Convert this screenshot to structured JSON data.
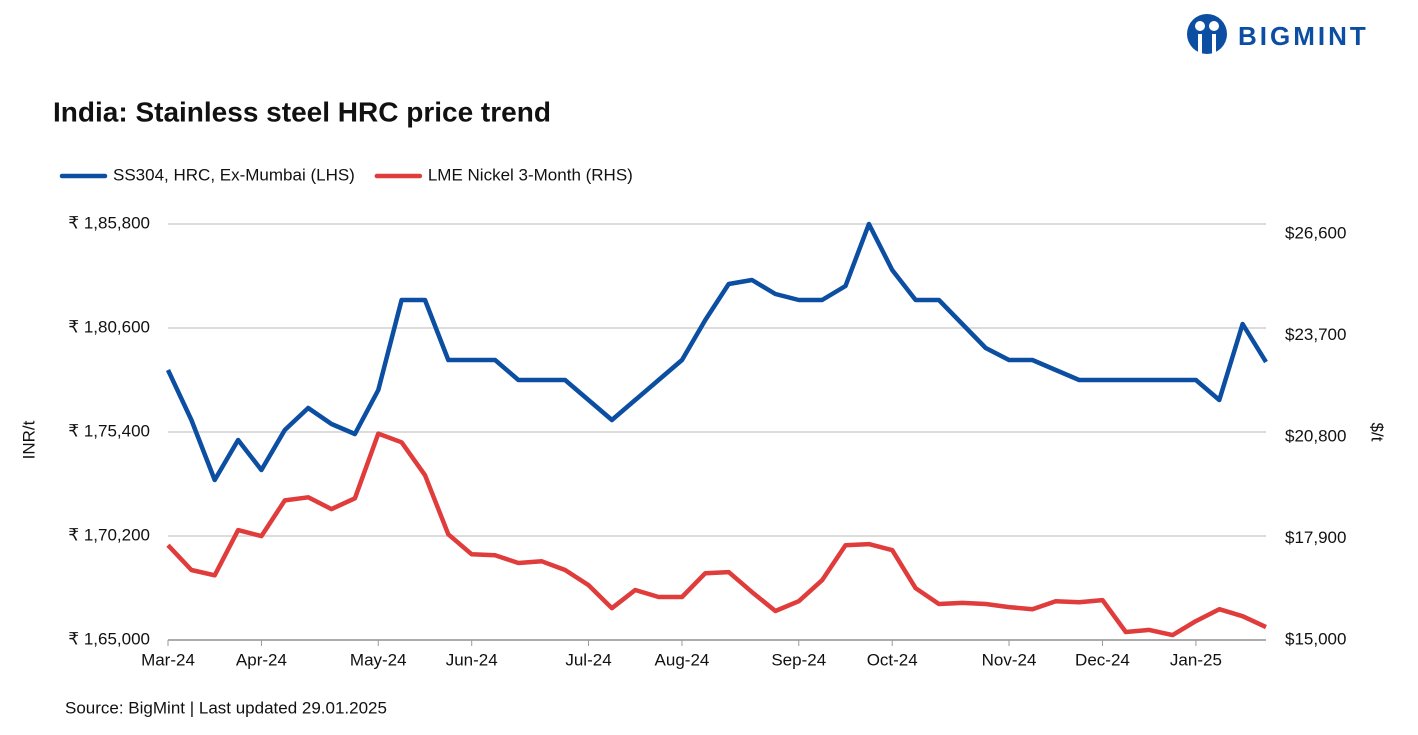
{
  "logo": "BIGMINT",
  "chart_data": {
    "type": "line",
    "title": "India: Stainless steel HRC price trend",
    "source": "Source: BigMint | Last updated 29.01.2025",
    "y_label": "INR/t",
    "y2_label": "$/t",
    "categories": [
      "Mar-24",
      null,
      null,
      null,
      "Apr-24",
      null,
      null,
      null,
      null,
      "May-24",
      null,
      null,
      null,
      "Jun-24",
      null,
      null,
      null,
      null,
      "Jul-24",
      null,
      null,
      null,
      "Aug-24",
      null,
      null,
      null,
      null,
      "Sep-24",
      null,
      null,
      null,
      "Oct-24",
      null,
      null,
      null,
      null,
      "Nov-24",
      null,
      null,
      null,
      "Dec-24",
      null,
      null,
      null,
      "Jan-25",
      null,
      null,
      null
    ],
    "series": [
      {
        "name": "SS304, HRC, Ex-Mumbai (LHS)",
        "color": "#0b4ea2",
        "axis": "y",
        "values": [
          178500,
          176000,
          173000,
          175000,
          173500,
          175500,
          176600,
          175800,
          175300,
          177500,
          182000,
          182000,
          179000,
          179000,
          179000,
          178000,
          178000,
          178000,
          177000,
          176000,
          177000,
          178000,
          179000,
          181000,
          182800,
          183000,
          182300,
          182000,
          182000,
          182700,
          185800,
          183500,
          182000,
          182000,
          180800,
          179600,
          179000,
          179000,
          178500,
          178000,
          178000,
          178000,
          178000,
          178000,
          178000,
          177000,
          180800,
          178900
        ]
      },
      {
        "name": "LME Nickel 3-Month (RHS)",
        "color": "#e03c3c",
        "axis": "y2",
        "values": [
          17710,
          17000,
          16850,
          18140,
          17970,
          18990,
          19080,
          18740,
          19050,
          20900,
          20650,
          19710,
          18020,
          17450,
          17420,
          17200,
          17250,
          17000,
          16570,
          15910,
          16430,
          16230,
          16230,
          16910,
          16940,
          16370,
          15830,
          16110,
          16710,
          17710,
          17740,
          17570,
          16480,
          16030,
          16060,
          16030,
          15940,
          15880,
          16110,
          16080,
          16140,
          15230,
          15290,
          15140,
          15540,
          15880,
          15680,
          15370
        ]
      }
    ],
    "ylim": [
      165000,
      185800
    ],
    "yticks": [
      {
        "value": 165000,
        "label": "₹ 1,65,000"
      },
      {
        "value": 170200,
        "label": "₹ 1,70,200"
      },
      {
        "value": 175400,
        "label": "₹ 1,75,400"
      },
      {
        "value": 180600,
        "label": "₹ 1,80,600"
      },
      {
        "value": 185800,
        "label": "₹ 1,85,800"
      }
    ],
    "y2lim": [
      15000,
      26890
    ],
    "y2ticks": [
      {
        "value": 15000,
        "label": "$15,000"
      },
      {
        "value": 17900,
        "label": "$17,900"
      },
      {
        "value": 20800,
        "label": "$20,800"
      },
      {
        "value": 23700,
        "label": "$23,700"
      },
      {
        "value": 26600,
        "label": "$26,600"
      }
    ],
    "grid": true,
    "legend": "top-left"
  }
}
